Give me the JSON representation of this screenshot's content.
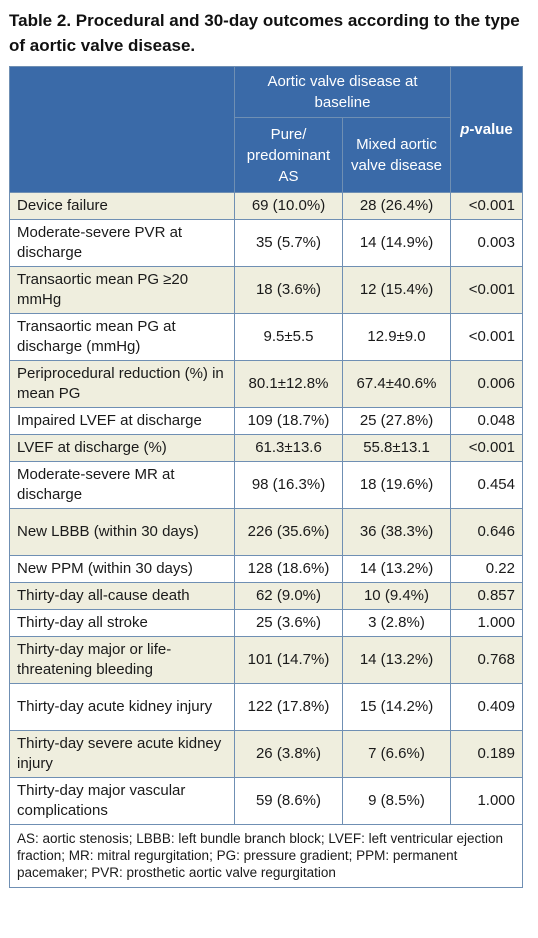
{
  "title": "Table 2. Procedural and 30-day outcomes according to the type of aortic valve disease.",
  "header": {
    "group_label": "Aortic valve disease at baseline",
    "col1": "Pure/ predominant AS",
    "col2": "Mixed aortic valve disease",
    "pvalue_italic": "p",
    "pvalue_rest": "-value"
  },
  "rows": [
    {
      "label": "Device failure",
      "col1": "69 (10.0%)",
      "col2": "28 (26.4%)",
      "p": "<0.001"
    },
    {
      "label": "Moderate-severe PVR at discharge",
      "col1": "35 (5.7%)",
      "col2": "14 (14.9%)",
      "p": "0.003"
    },
    {
      "label": "Transaortic mean PG ≥20 mmHg",
      "col1": "18 (3.6%)",
      "col2": "12 (15.4%)",
      "p": "<0.001"
    },
    {
      "label": "Transaortic mean PG at discharge (mmHg)",
      "col1": "9.5±5.5",
      "col2": "12.9±9.0",
      "p": "<0.001"
    },
    {
      "label": "Periprocedural reduction (%) in mean PG",
      "col1": "80.1±12.8%",
      "col2": "67.4±40.6%",
      "p": "0.006"
    },
    {
      "label": "Impaired LVEF at discharge",
      "col1": "109 (18.7%)",
      "col2": "25 (27.8%)",
      "p": "0.048"
    },
    {
      "label": "LVEF at discharge (%)",
      "col1": "61.3±13.6",
      "col2": "55.8±13.1",
      "p": "<0.001"
    },
    {
      "label": "Moderate-severe MR at discharge",
      "col1": "98 (16.3%)",
      "col2": "18 (19.6%)",
      "p": "0.454"
    },
    {
      "label": "New LBBB (within 30 days)",
      "col1": "226 (35.6%)",
      "col2": "36 (38.3%)",
      "p": "0.646"
    },
    {
      "label": "New PPM (within 30 days)",
      "col1": "128 (18.6%)",
      "col2": "14 (13.2%)",
      "p": "0.22"
    },
    {
      "label": "Thirty-day all-cause death",
      "col1": "62 (9.0%)",
      "col2": "10 (9.4%)",
      "p": "0.857"
    },
    {
      "label": "Thirty-day all stroke",
      "col1": "25 (3.6%)",
      "col2": "3 (2.8%)",
      "p": "1.000"
    },
    {
      "label": "Thirty-day major or life-threatening bleeding",
      "col1": "101 (14.7%)",
      "col2": "14 (13.2%)",
      "p": "0.768"
    },
    {
      "label": "Thirty-day acute kidney injury",
      "col1": "122 (17.8%)",
      "col2": "15 (14.2%)",
      "p": "0.409"
    },
    {
      "label": "Thirty-day severe acute kidney injury",
      "col1": "26 (3.8%)",
      "col2": "7 (6.6%)",
      "p": "0.189"
    },
    {
      "label": "Thirty-day major vascular complications",
      "col1": "59 (8.6%)",
      "col2": "9 (8.5%)",
      "p": "1.000"
    }
  ],
  "footnote": "AS: aortic stenosis; LBBB: left bundle branch block; LVEF: left ventricular ejection fraction; MR: mitral regurgitation; PG: pressure gradient; PPM: permanent pacemaker; PVR: prosthetic aortic valve regurgitation",
  "colors": {
    "header_bg": "#3a6aa8",
    "row_shade": "#efeede",
    "border": "#6f8fb3"
  }
}
